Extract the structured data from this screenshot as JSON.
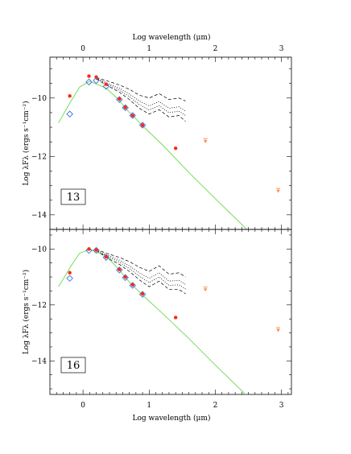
{
  "colors": {
    "model": "#7fe06a",
    "photometry": "#ff2a10",
    "upper_limit": "#ff8a4a",
    "alt_model": "#3e6fe0",
    "envelope": "#000000"
  },
  "chart_data": {
    "type": "scatter",
    "x_top_label": "Log wavelength (μm)",
    "x_bottom_label": "Log wavelength (μm)",
    "xlim": [
      -0.5,
      3.15
    ],
    "top_tick_labels": [
      "0",
      "1",
      "2",
      "3"
    ],
    "bottom_tick_labels": [
      "0",
      "1",
      "2",
      "3"
    ],
    "panels": [
      {
        "label": "13",
        "ylabel": "Log λFλ (ergs s⁻¹cm⁻²)",
        "ylim": [
          -14.5,
          -8.6
        ],
        "y_tick_labels": [
          "−10",
          "−12",
          "−14"
        ],
        "y_ticks": [
          -10,
          -12,
          -14
        ],
        "series": [
          {
            "kind": "model",
            "x": [
              -0.37,
              -0.18,
              -0.05,
              0.1,
              0.2,
              0.35,
              0.55,
              0.65,
              0.75,
              0.9,
              1.2,
              1.6,
              2.0,
              2.5
            ],
            "y": [
              -10.85,
              -10.1,
              -9.62,
              -9.42,
              -9.52,
              -9.66,
              -10.08,
              -10.38,
              -10.6,
              -10.95,
              -11.6,
              -12.55,
              -13.45,
              -14.55
            ]
          },
          {
            "kind": "photometry",
            "x": [
              -0.2,
              0.09,
              0.2,
              0.35,
              0.55,
              0.64,
              0.75,
              0.9,
              1.4
            ],
            "y": [
              -9.93,
              -9.25,
              -9.28,
              -9.53,
              -10.03,
              -10.32,
              -10.6,
              -10.93,
              -11.72
            ]
          },
          {
            "kind": "alt_model",
            "x": [
              -0.2,
              0.09,
              0.2,
              0.35,
              0.55,
              0.64,
              0.75,
              0.9
            ],
            "y": [
              -10.55,
              -9.45,
              -9.4,
              -9.6,
              -10.05,
              -10.33,
              -10.6,
              -10.93
            ]
          },
          {
            "kind": "upper_limit",
            "x": [
              1.85,
              2.95
            ],
            "y": [
              -11.48,
              -13.18
            ]
          },
          {
            "kind": "envelope_dashed",
            "x": [
              0.2,
              0.35,
              0.55,
              0.7,
              0.85,
              1.0,
              1.15,
              1.3,
              1.45,
              1.55
            ],
            "y": [
              -9.3,
              -9.4,
              -9.55,
              -9.7,
              -9.9,
              -10.0,
              -9.85,
              -10.05,
              -10.0,
              -10.1
            ]
          },
          {
            "kind": "envelope_dashed",
            "x": [
              0.2,
              0.35,
              0.55,
              0.7,
              0.85,
              1.0,
              1.15,
              1.3,
              1.45,
              1.55
            ],
            "y": [
              -9.35,
              -9.55,
              -9.8,
              -10.05,
              -10.35,
              -10.55,
              -10.4,
              -10.65,
              -10.6,
              -10.8
            ]
          },
          {
            "kind": "envelope_dotted",
            "x": [
              0.2,
              0.35,
              0.55,
              0.7,
              0.85,
              1.0,
              1.15,
              1.3,
              1.45,
              1.55
            ],
            "y": [
              -9.32,
              -9.47,
              -9.66,
              -9.86,
              -10.1,
              -10.27,
              -10.12,
              -10.35,
              -10.3,
              -10.45
            ]
          },
          {
            "kind": "envelope_dotted",
            "x": [
              0.2,
              0.35,
              0.55,
              0.7,
              0.85,
              1.0,
              1.15,
              1.3,
              1.45,
              1.55
            ],
            "y": [
              -9.34,
              -9.51,
              -9.73,
              -9.95,
              -10.22,
              -10.41,
              -10.26,
              -10.5,
              -10.45,
              -10.6
            ]
          }
        ]
      },
      {
        "label": "16",
        "ylabel": "Log λFλ (ergs s⁻¹cm⁻²)",
        "ylim": [
          -15.2,
          -9.3
        ],
        "y_tick_labels": [
          "−10",
          "−12",
          "−14"
        ],
        "y_ticks": [
          -10,
          -12,
          -14
        ],
        "series": [
          {
            "kind": "model",
            "x": [
              -0.37,
              -0.18,
              -0.05,
              0.1,
              0.2,
              0.35,
              0.55,
              0.65,
              0.75,
              0.9,
              1.2,
              1.6,
              2.0,
              2.5
            ],
            "y": [
              -11.35,
              -10.6,
              -10.15,
              -10.02,
              -10.1,
              -10.25,
              -10.75,
              -11.05,
              -11.3,
              -11.65,
              -12.3,
              -13.2,
              -14.15,
              -15.3
            ]
          },
          {
            "kind": "photometry",
            "x": [
              -0.2,
              0.09,
              0.2,
              0.35,
              0.55,
              0.64,
              0.75,
              0.9,
              1.4
            ],
            "y": [
              -10.85,
              -10.0,
              -10.03,
              -10.28,
              -10.73,
              -11.0,
              -11.28,
              -11.6,
              -12.45
            ]
          },
          {
            "kind": "alt_model",
            "x": [
              -0.2,
              0.09,
              0.2,
              0.35,
              0.55,
              0.64,
              0.75,
              0.9
            ],
            "y": [
              -11.05,
              -10.05,
              -10.05,
              -10.3,
              -10.75,
              -11.02,
              -11.3,
              -11.62
            ]
          },
          {
            "kind": "upper_limit",
            "x": [
              1.85,
              2.95
            ],
            "y": [
              -11.45,
              -12.9
            ]
          },
          {
            "kind": "envelope_dashed",
            "x": [
              0.2,
              0.35,
              0.55,
              0.7,
              0.85,
              1.0,
              1.15,
              1.3,
              1.45,
              1.55
            ],
            "y": [
              -10.0,
              -10.15,
              -10.3,
              -10.45,
              -10.65,
              -10.8,
              -10.6,
              -10.9,
              -10.85,
              -11.0
            ]
          },
          {
            "kind": "envelope_dashed",
            "x": [
              0.2,
              0.35,
              0.55,
              0.7,
              0.85,
              1.0,
              1.15,
              1.3,
              1.45,
              1.55
            ],
            "y": [
              -10.05,
              -10.3,
              -10.55,
              -10.8,
              -11.1,
              -11.35,
              -11.15,
              -11.45,
              -11.45,
              -11.6
            ]
          },
          {
            "kind": "envelope_dotted",
            "x": [
              0.2,
              0.35,
              0.55,
              0.7,
              0.85,
              1.0,
              1.15,
              1.3,
              1.45,
              1.55
            ],
            "y": [
              -10.02,
              -10.2,
              -10.4,
              -10.6,
              -10.85,
              -11.05,
              -10.85,
              -11.15,
              -11.12,
              -11.27
            ]
          },
          {
            "kind": "envelope_dotted",
            "x": [
              0.2,
              0.35,
              0.55,
              0.7,
              0.85,
              1.0,
              1.15,
              1.3,
              1.45,
              1.55
            ],
            "y": [
              -10.04,
              -10.25,
              -10.47,
              -10.7,
              -10.97,
              -11.2,
              -11.0,
              -11.3,
              -11.28,
              -11.43
            ]
          }
        ]
      }
    ]
  }
}
